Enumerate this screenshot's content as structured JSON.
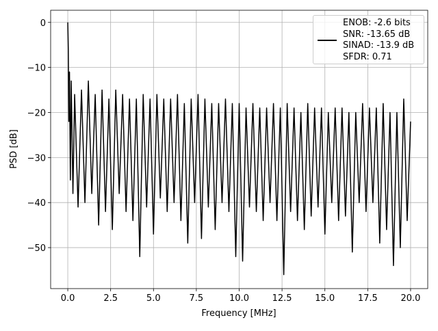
{
  "chart_data": {
    "type": "line",
    "xlabel": "Frequency [MHz]",
    "ylabel": "PSD [dB]",
    "xlim": [
      -1,
      21
    ],
    "ylim": [
      -59.1,
      2.7
    ],
    "xticks": [
      {
        "value": 0,
        "label": "0.0"
      },
      2.5,
      {
        "value": 5,
        "label": "5.0"
      },
      7.5,
      {
        "value": 10,
        "label": "10.0"
      },
      12.5,
      {
        "value": 15,
        "label": "15.0"
      },
      17.5,
      {
        "value": 20,
        "label": "20.0"
      }
    ],
    "yticks": [
      {
        "value": -50,
        "label": "−50"
      },
      {
        "value": -40,
        "label": "−40"
      },
      {
        "value": -30,
        "label": "−30"
      },
      {
        "value": -20,
        "label": "−20"
      },
      {
        "value": -10,
        "label": "−10"
      },
      0
    ],
    "grid": true,
    "legend": "upper right",
    "x": [
      0,
      0.03,
      0.06,
      0.1,
      0.15,
      0.2,
      0.3,
      0.4,
      0.6,
      0.8,
      1.0,
      1.2,
      1.4,
      1.6,
      1.8,
      2.0,
      2.2,
      2.4,
      2.6,
      2.8,
      3.0,
      3.2,
      3.4,
      3.6,
      3.8,
      4.0,
      4.2,
      4.4,
      4.6,
      4.8,
      5.0,
      5.2,
      5.4,
      5.6,
      5.8,
      6.0,
      6.2,
      6.4,
      6.6,
      6.8,
      7.0,
      7.2,
      7.4,
      7.6,
      7.8,
      8.0,
      8.2,
      8.4,
      8.6,
      8.8,
      9.0,
      9.2,
      9.4,
      9.6,
      9.8,
      10.0,
      10.2,
      10.4,
      10.6,
      10.8,
      11.0,
      11.2,
      11.4,
      11.6,
      11.8,
      12.0,
      12.2,
      12.4,
      12.6,
      12.8,
      13.0,
      13.2,
      13.4,
      13.6,
      13.8,
      14.0,
      14.2,
      14.4,
      14.6,
      14.8,
      15.0,
      15.2,
      15.4,
      15.6,
      15.8,
      16.0,
      16.2,
      16.4,
      16.6,
      16.8,
      17.0,
      17.2,
      17.4,
      17.6,
      17.8,
      18.0,
      18.2,
      18.4,
      18.6,
      18.8,
      19.0,
      19.2,
      19.4,
      19.6,
      19.8,
      20.0
    ],
    "series": [
      {
        "name": "ENOB: -2.6 bits\nSNR: -13.65 dB\nSINAD: -13.9 dB\nSFDR: 0.71",
        "color": "#000000",
        "values": [
          0,
          -6,
          -22,
          -11,
          -35,
          -13,
          -38,
          -16,
          -41,
          -15,
          -40,
          -13,
          -38,
          -16,
          -45,
          -15,
          -42,
          -17,
          -46,
          -15,
          -38,
          -16,
          -42,
          -17,
          -44,
          -17,
          -52,
          -16,
          -41,
          -17,
          -47,
          -16,
          -39,
          -17,
          -42,
          -17,
          -40,
          -16,
          -44,
          -18,
          -49,
          -17,
          -40,
          -16,
          -48,
          -17,
          -41,
          -18,
          -46,
          -18,
          -40,
          -17,
          -42,
          -18,
          -52,
          -18,
          -53,
          -19,
          -41,
          -18,
          -42,
          -19,
          -44,
          -19,
          -40,
          -18,
          -44,
          -19,
          -56,
          -18,
          -42,
          -19,
          -44,
          -20,
          -46,
          -18,
          -43,
          -19,
          -41,
          -19,
          -47,
          -20,
          -40,
          -19,
          -44,
          -19,
          -43,
          -20,
          -51,
          -20,
          -40,
          -18,
          -42,
          -19,
          -40,
          -19,
          -49,
          -18,
          -46,
          -20,
          -54,
          -20,
          -50,
          -17,
          -44,
          -22
        ]
      }
    ]
  }
}
